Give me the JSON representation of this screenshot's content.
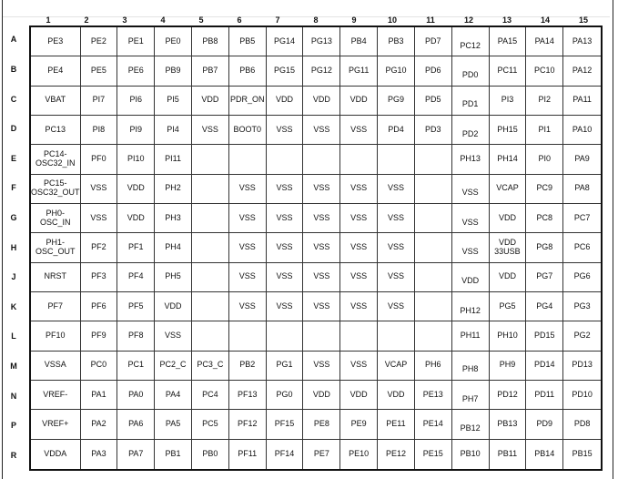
{
  "columns": [
    "1",
    "2",
    "3",
    "4",
    "5",
    "6",
    "7",
    "8",
    "9",
    "10",
    "11",
    "12",
    "13",
    "14",
    "15"
  ],
  "rows": [
    {
      "label": "A",
      "cells": [
        "PE3",
        "PE2",
        "PE1",
        "PE0",
        "PB8",
        "PB5",
        "PG14",
        "PG13",
        "PB4",
        "PB3",
        "PD7",
        "PC12",
        "PA15",
        "PA14",
        "PA13"
      ]
    },
    {
      "label": "B",
      "cells": [
        "PE4",
        "PE5",
        "PE6",
        "PB9",
        "PB7",
        "PB6",
        "PG15",
        "PG12",
        "PG11",
        "PG10",
        "PD6",
        "PD0",
        "PC11",
        "PC10",
        "PA12"
      ]
    },
    {
      "label": "C",
      "cells": [
        "VBAT",
        "PI7",
        "PI6",
        "PI5",
        "VDD",
        "PDR_ON",
        "VDD",
        "VDD",
        "VDD",
        "PG9",
        "PD5",
        "PD1",
        "PI3",
        "PI2",
        "PA11"
      ]
    },
    {
      "label": "D",
      "cells": [
        "PC13",
        "PI8",
        "PI9",
        "PI4",
        "VSS",
        "BOOT0",
        "VSS",
        "VSS",
        "VSS",
        "PD4",
        "PD3",
        "PD2",
        "PH15",
        "PI1",
        "PA10"
      ]
    },
    {
      "label": "E",
      "cells": [
        "PC14-OSC32_IN",
        "PF0",
        "PI10",
        "PI11",
        "",
        "",
        "",
        "",
        "",
        "",
        "",
        "PH13",
        "PH14",
        "PI0",
        "PA9"
      ]
    },
    {
      "label": "F",
      "cells": [
        "PC15-OSC32_OUT",
        "VSS",
        "VDD",
        "PH2",
        "",
        "VSS",
        "VSS",
        "VSS",
        "VSS",
        "VSS",
        "",
        "VSS",
        "VCAP",
        "PC9",
        "PA8"
      ]
    },
    {
      "label": "G",
      "cells": [
        "PH0-OSC_IN",
        "VSS",
        "VDD",
        "PH3",
        "",
        "VSS",
        "VSS",
        "VSS",
        "VSS",
        "VSS",
        "",
        "VSS",
        "VDD",
        "PC8",
        "PC7"
      ]
    },
    {
      "label": "H",
      "cells": [
        "PH1-OSC_OUT",
        "PF2",
        "PF1",
        "PH4",
        "",
        "VSS",
        "VSS",
        "VSS",
        "VSS",
        "VSS",
        "",
        "VSS",
        "VDD 33USB",
        "PG8",
        "PC6"
      ]
    },
    {
      "label": "J",
      "cells": [
        "NRST",
        "PF3",
        "PF4",
        "PH5",
        "",
        "VSS",
        "VSS",
        "VSS",
        "VSS",
        "VSS",
        "",
        "VDD",
        "VDD",
        "PG7",
        "PG6"
      ]
    },
    {
      "label": "K",
      "cells": [
        "PF7",
        "PF6",
        "PF5",
        "VDD",
        "",
        "VSS",
        "VSS",
        "VSS",
        "VSS",
        "VSS",
        "",
        "PH12",
        "PG5",
        "PG4",
        "PG3"
      ]
    },
    {
      "label": "L",
      "cells": [
        "PF10",
        "PF9",
        "PF8",
        "VSS",
        "",
        "",
        "",
        "",
        "",
        "",
        "",
        "PH11",
        "PH10",
        "PD15",
        "PG2"
      ]
    },
    {
      "label": "M",
      "cells": [
        "VSSA",
        "PC0",
        "PC1",
        "PC2_C",
        "PC3_C",
        "PB2",
        "PG1",
        "VSS",
        "VSS",
        "VCAP",
        "PH6",
        "PH8",
        "PH9",
        "PD14",
        "PD13"
      ]
    },
    {
      "label": "N",
      "cells": [
        "VREF-",
        "PA1",
        "PA0",
        "PA4",
        "PC4",
        "PF13",
        "PG0",
        "VDD",
        "VDD",
        "VDD",
        "PE13",
        "PH7",
        "PD12",
        "PD11",
        "PD10"
      ]
    },
    {
      "label": "P",
      "cells": [
        "VREF+",
        "PA2",
        "PA6",
        "PA5",
        "PC5",
        "PF12",
        "PF15",
        "PE8",
        "PE9",
        "PE11",
        "PE14",
        "PB12",
        "PB13",
        "PD9",
        "PD8"
      ]
    },
    {
      "label": "R",
      "cells": [
        "VDDA",
        "PA3",
        "PA7",
        "PB1",
        "PB0",
        "PF11",
        "PF14",
        "PE7",
        "PE10",
        "PE12",
        "PE15",
        "PB10",
        "PB11",
        "PB14",
        "PB15"
      ]
    }
  ]
}
